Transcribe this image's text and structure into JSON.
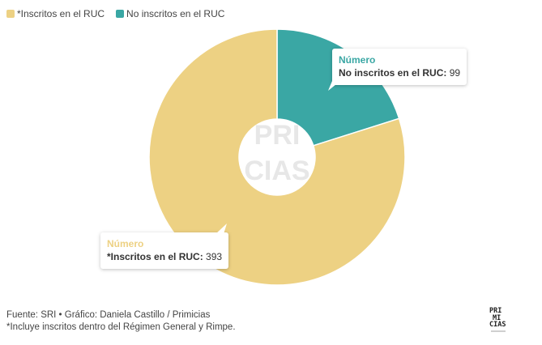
{
  "chart_data": {
    "type": "donut",
    "series": [
      {
        "name": "*Inscritos en el RUC",
        "value": 393,
        "color": "#EDD183"
      },
      {
        "name": "No inscritos en el RUC",
        "value": 99,
        "color": "#3AA7A4"
      }
    ],
    "legend_position": "top-left",
    "tooltips": [
      {
        "title": "Número",
        "label": "No inscritos en el RUC:",
        "value": "99",
        "title_color": "#3AA7A4"
      },
      {
        "title": "Número",
        "label": "*Inscritos en el RUC:",
        "value": "393",
        "title_color": "#EDD183"
      }
    ]
  },
  "footer": {
    "line1": "Fuente: SRI • Gráfico: Daniela Castillo / Primicias",
    "line2": "*Incluye inscritos dentro del Régimen General y Rimpe."
  },
  "watermark": [
    "PRI",
    "MI",
    "CIAS"
  ],
  "logo": [
    "PRI",
    "MI",
    "CIAS"
  ]
}
